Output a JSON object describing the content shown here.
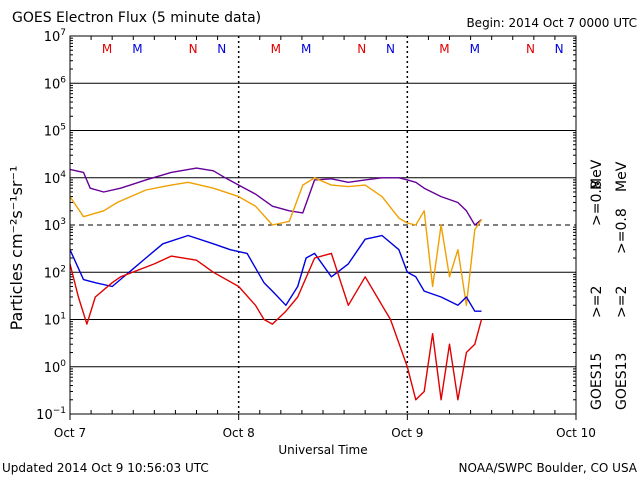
{
  "header": {
    "title": "GOES Electron Flux (5 minute data)",
    "begin": "Begin: 2014 Oct 7 0000 UTC"
  },
  "footer": {
    "updated": "Updated 2014 Oct  9 10:56:03 UTC",
    "credit": "NOAA/SWPC Boulder, CO USA"
  },
  "legend": {
    "goes15_label": "GOES15",
    "goes13_label": "GOES13",
    "goes15_ge2": ">=2",
    "goes13_ge2": ">=2",
    "goes15_ge08": ">=0.8",
    "goes13_ge08": ">=0.8",
    "unit": "MeV"
  },
  "chart_data": {
    "type": "line",
    "title": "GOES Electron Flux (5 minute data)",
    "xlabel": "Universal Time",
    "ylabel": "Particles cm⁻²s⁻¹sr⁻¹",
    "yscale": "log",
    "ylim": [
      0.1,
      10000000
    ],
    "xlim": [
      0,
      3
    ],
    "x_unit": "days since 2014 Oct 7 0000 UTC",
    "x_ticks": [
      {
        "x": 0,
        "label": "Oct 7"
      },
      {
        "x": 1,
        "label": "Oct 8"
      },
      {
        "x": 2,
        "label": "Oct 9"
      },
      {
        "x": 3,
        "label": "Oct 10"
      }
    ],
    "y_ticks": [
      {
        "exp": -1
      },
      {
        "exp": 0
      },
      {
        "exp": 1
      },
      {
        "exp": 2
      },
      {
        "exp": 3
      },
      {
        "exp": 4
      },
      {
        "exp": 5
      },
      {
        "exp": 6
      },
      {
        "exp": 7
      }
    ],
    "tick_base": "10",
    "threshold": {
      "y": 1000,
      "style": "dashed"
    },
    "grid": "horizontal at each decade",
    "mn_markers": [
      {
        "x": 0.22,
        "label": "M",
        "color": "#e00000"
      },
      {
        "x": 0.4,
        "label": "M",
        "color": "#0000e0"
      },
      {
        "x": 0.73,
        "label": "N",
        "color": "#e00000"
      },
      {
        "x": 0.9,
        "label": "N",
        "color": "#0000e0"
      },
      {
        "x": 1.22,
        "label": "M",
        "color": "#e00000"
      },
      {
        "x": 1.4,
        "label": "M",
        "color": "#0000e0"
      },
      {
        "x": 1.73,
        "label": "N",
        "color": "#e00000"
      },
      {
        "x": 1.9,
        "label": "N",
        "color": "#0000e0"
      },
      {
        "x": 2.22,
        "label": "M",
        "color": "#e00000"
      },
      {
        "x": 2.4,
        "label": "M",
        "color": "#0000e0"
      },
      {
        "x": 2.73,
        "label": "N",
        "color": "#e00000"
      },
      {
        "x": 2.9,
        "label": "N",
        "color": "#0000e0"
      }
    ],
    "series": [
      {
        "name": "GOES15 >=0.8 MeV",
        "color": "#660099",
        "x": [
          0.0,
          0.08,
          0.12,
          0.2,
          0.3,
          0.45,
          0.6,
          0.75,
          0.85,
          0.92,
          1.0,
          1.1,
          1.2,
          1.3,
          1.38,
          1.45,
          1.55,
          1.65,
          1.75,
          1.85,
          1.95,
          2.0,
          2.05,
          2.1,
          2.2,
          2.3,
          2.35,
          2.4,
          2.44
        ],
        "values": [
          15000,
          13000,
          6000,
          5000,
          6000,
          9000,
          13000,
          16000,
          14000,
          10000,
          7000,
          4500,
          2500,
          2000,
          1800,
          9000,
          9500,
          8000,
          9000,
          10000,
          10000,
          9000,
          8000,
          6000,
          4000,
          3000,
          2000,
          1000,
          1300
        ]
      },
      {
        "name": "GOES13 >=0.8 MeV",
        "color": "#f0a000",
        "x": [
          0.0,
          0.08,
          0.2,
          0.28,
          0.45,
          0.6,
          0.7,
          0.85,
          1.0,
          1.1,
          1.2,
          1.3,
          1.38,
          1.45,
          1.55,
          1.65,
          1.75,
          1.85,
          1.95,
          2.0,
          2.05,
          2.1,
          2.15,
          2.2,
          2.25,
          2.3,
          2.35,
          2.4,
          2.44
        ],
        "values": [
          4000,
          1500,
          2000,
          3000,
          5500,
          7000,
          8000,
          6000,
          4000,
          2500,
          1000,
          1200,
          7000,
          10000,
          7000,
          6500,
          7000,
          4000,
          1400,
          1100,
          1000,
          2000,
          50,
          1000,
          80,
          300,
          20,
          800,
          1300
        ]
      },
      {
        "name": "GOES15 >=2 MeV",
        "color": "#0000e0",
        "x": [
          0.0,
          0.08,
          0.15,
          0.25,
          0.35,
          0.45,
          0.55,
          0.7,
          0.85,
          0.95,
          1.05,
          1.15,
          1.2,
          1.28,
          1.35,
          1.4,
          1.45,
          1.55,
          1.65,
          1.75,
          1.85,
          1.95,
          2.0,
          2.05,
          2.1,
          2.2,
          2.3,
          2.35,
          2.4,
          2.44
        ],
        "values": [
          300,
          70,
          60,
          50,
          100,
          200,
          400,
          600,
          400,
          300,
          250,
          60,
          40,
          20,
          50,
          200,
          250,
          80,
          150,
          500,
          600,
          300,
          100,
          80,
          40,
          30,
          20,
          30,
          15,
          15
        ]
      },
      {
        "name": "GOES13 >=2 MeV",
        "color": "#e00000",
        "x": [
          0.0,
          0.05,
          0.1,
          0.15,
          0.25,
          0.3,
          0.5,
          0.6,
          0.75,
          0.85,
          1.0,
          1.1,
          1.15,
          1.2,
          1.28,
          1.35,
          1.45,
          1.55,
          1.65,
          1.75,
          1.85,
          1.9,
          2.0,
          2.05,
          2.1,
          2.15,
          2.2,
          2.25,
          2.3,
          2.35,
          2.4,
          2.44
        ],
        "values": [
          150,
          30,
          8,
          30,
          60,
          80,
          150,
          220,
          180,
          100,
          50,
          20,
          10,
          8,
          15,
          30,
          200,
          250,
          20,
          80,
          20,
          10,
          1,
          0.2,
          0.3,
          5,
          0.2,
          3,
          0.2,
          2,
          3,
          10
        ]
      }
    ]
  }
}
